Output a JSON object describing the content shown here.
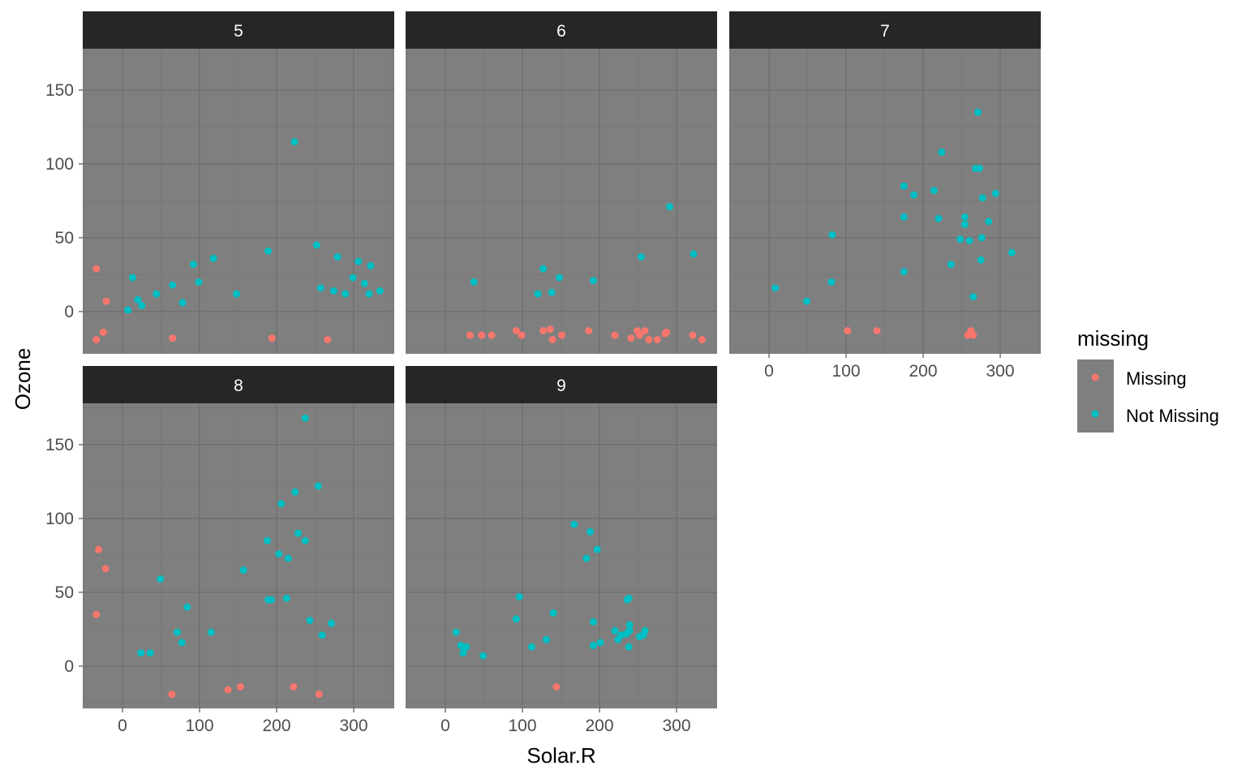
{
  "chart_data": {
    "type": "scatter",
    "xlabel": "Solar.R",
    "ylabel": "Ozone",
    "xlim": [
      -51.6,
      352.6
    ],
    "ylim": [
      -28.6,
      178
    ],
    "x_ticks": [
      0,
      100,
      200,
      300
    ],
    "y_ticks": [
      0,
      50,
      100,
      150
    ],
    "grid": true,
    "legend": {
      "title": "missing",
      "placement": "right",
      "entries": [
        "Missing",
        "Not Missing"
      ]
    },
    "colors": {
      "Missing": "#F8766D",
      "Not Missing": "#00BFC4",
      "panel": "#7F7F7F",
      "strip": "#262626"
    },
    "facets": [
      {
        "label": "5",
        "Missing": [
          [
            -34,
            29
          ],
          [
            -34,
            -19
          ],
          [
            -25,
            -14
          ],
          [
            -21,
            7
          ],
          [
            65,
            -18
          ],
          [
            194,
            -18
          ],
          [
            266,
            -19
          ]
        ],
        "Not Missing": [
          [
            7,
            1
          ],
          [
            13,
            23
          ],
          [
            20,
            8
          ],
          [
            25,
            4
          ],
          [
            44,
            12
          ],
          [
            65,
            18
          ],
          [
            78,
            6
          ],
          [
            92,
            32
          ],
          [
            99,
            20
          ],
          [
            118,
            36
          ],
          [
            148,
            12
          ],
          [
            189,
            41
          ],
          [
            223,
            115
          ],
          [
            252,
            45
          ],
          [
            257,
            16
          ],
          [
            274,
            14
          ],
          [
            279,
            37
          ],
          [
            289,
            12
          ],
          [
            299,
            23
          ],
          [
            306,
            34
          ],
          [
            314,
            19
          ],
          [
            320,
            12
          ],
          [
            322,
            31
          ],
          [
            334,
            14
          ]
        ]
      },
      {
        "label": "6",
        "Missing": [
          [
            32,
            -16
          ],
          [
            47,
            -16
          ],
          [
            60,
            -16
          ],
          [
            92,
            -13
          ],
          [
            99,
            -16
          ],
          [
            127,
            -13
          ],
          [
            136,
            -12
          ],
          [
            139,
            -19
          ],
          [
            151,
            -16
          ],
          [
            186,
            -13
          ],
          [
            220,
            -16
          ],
          [
            241,
            -18
          ],
          [
            249,
            -13
          ],
          [
            252,
            -16
          ],
          [
            259,
            -13
          ],
          [
            264,
            -19
          ],
          [
            275,
            -19
          ],
          [
            285,
            -15
          ],
          [
            287,
            -14
          ],
          [
            321,
            -16
          ],
          [
            333,
            -19
          ]
        ],
        "Not Missing": [
          [
            37,
            20
          ],
          [
            120,
            12
          ],
          [
            127,
            29
          ],
          [
            138,
            13
          ],
          [
            148,
            23
          ],
          [
            192,
            21
          ],
          [
            254,
            37
          ],
          [
            291,
            71
          ],
          [
            322,
            39
          ]
        ]
      },
      {
        "label": "7",
        "Missing": [
          [
            102,
            -13
          ],
          [
            140,
            -13
          ],
          [
            258,
            -16
          ],
          [
            262,
            -13
          ],
          [
            265,
            -16
          ]
        ],
        "Not Missing": [
          [
            8,
            16
          ],
          [
            49,
            7
          ],
          [
            82,
            52
          ],
          [
            81,
            20
          ],
          [
            175,
            85
          ],
          [
            175,
            27
          ],
          [
            175,
            64
          ],
          [
            188,
            79
          ],
          [
            214,
            82
          ],
          [
            220,
            63
          ],
          [
            224,
            108
          ],
          [
            236,
            32
          ],
          [
            248,
            49
          ],
          [
            254,
            64
          ],
          [
            254,
            59
          ],
          [
            260,
            48
          ],
          [
            265,
            10
          ],
          [
            268,
            97
          ],
          [
            271,
            135
          ],
          [
            273,
            97
          ],
          [
            275,
            35
          ],
          [
            276,
            50
          ],
          [
            277,
            77
          ],
          [
            285,
            61
          ],
          [
            294,
            80
          ],
          [
            315,
            40
          ]
        ]
      },
      {
        "label": "8",
        "Missing": [
          [
            -34,
            35
          ],
          [
            -31,
            79
          ],
          [
            -22,
            66
          ],
          [
            64,
            -19
          ],
          [
            137,
            -16
          ],
          [
            153,
            -14
          ],
          [
            222,
            -14
          ],
          [
            255,
            -19
          ]
        ],
        "Not Missing": [
          [
            24,
            9
          ],
          [
            36,
            9
          ],
          [
            49,
            59
          ],
          [
            71,
            23
          ],
          [
            77,
            16
          ],
          [
            84,
            40
          ],
          [
            115,
            23
          ],
          [
            157,
            65
          ],
          [
            188,
            85
          ],
          [
            189,
            45
          ],
          [
            193,
            45
          ],
          [
            203,
            76
          ],
          [
            206,
            110
          ],
          [
            213,
            46
          ],
          [
            215,
            73
          ],
          [
            224,
            118
          ],
          [
            228,
            90
          ],
          [
            237,
            85
          ],
          [
            237,
            168
          ],
          [
            243,
            31
          ],
          [
            254,
            122
          ],
          [
            259,
            21
          ],
          [
            271,
            29
          ]
        ]
      },
      {
        "label": "9",
        "Missing": [
          [
            144,
            -14
          ]
        ],
        "Not Missing": [
          [
            14,
            23
          ],
          [
            20,
            14
          ],
          [
            23,
            9
          ],
          [
            24,
            13
          ],
          [
            27,
            13
          ],
          [
            49,
            7
          ],
          [
            92,
            32
          ],
          [
            96,
            47
          ],
          [
            112,
            13
          ],
          [
            131,
            18
          ],
          [
            140,
            36
          ],
          [
            167,
            96
          ],
          [
            183,
            73
          ],
          [
            188,
            91
          ],
          [
            192,
            30
          ],
          [
            192,
            14
          ],
          [
            201,
            16
          ],
          [
            197,
            79
          ],
          [
            220,
            24
          ],
          [
            224,
            18
          ],
          [
            228,
            21
          ],
          [
            235,
            22
          ],
          [
            236,
            45
          ],
          [
            238,
            46
          ],
          [
            238,
            13
          ],
          [
            239,
            28
          ],
          [
            239,
            24
          ],
          [
            252,
            20
          ],
          [
            257,
            21
          ],
          [
            259,
            24
          ]
        ]
      }
    ]
  }
}
